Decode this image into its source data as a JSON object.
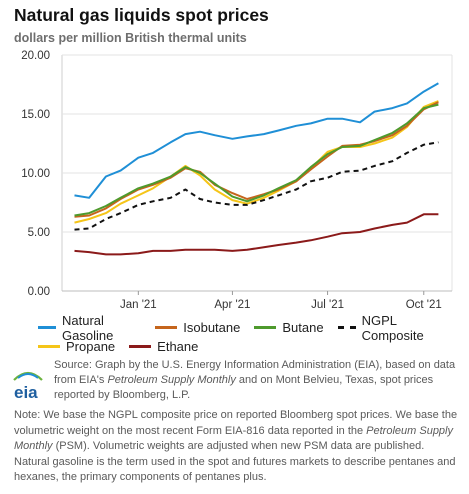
{
  "title": "Natural gas liquids spot prices",
  "subtitle": "dollars per million British thermal units",
  "logo_text": "eia",
  "source": {
    "prefix": "Source: Graph by the U.S. Energy Information Administration (EIA), based on data from EIA's ",
    "italic1": "Petroleum Supply Monthly",
    "suffix": " and on Mont Belvieu, Texas, spot prices reported by Bloomberg, L.P."
  },
  "note": {
    "prefix": "Note: We base the NGPL composite price on reported Bloomberg spot prices. We base the volumetric weight on the most recent Form EIA-816 data reported in the ",
    "italic1": "Petroleum Supply Monthly",
    "suffix": " (PSM). Volumetric weights are adjusted when new PSM data are published. Natural gasoline is the term used in the spot and futures markets to describe pentanes and hexanes, the primary components of pentanes plus."
  },
  "chart_data": {
    "type": "line",
    "title": "Natural gas liquids spot prices",
    "subtitle": "dollars per million British thermal units",
    "x": [
      "2020-11-01",
      "2020-11-15",
      "2020-12-01",
      "2020-12-15",
      "2021-01-01",
      "2021-01-15",
      "2021-02-01",
      "2021-02-15",
      "2021-03-01",
      "2021-03-15",
      "2021-04-01",
      "2021-04-15",
      "2021-05-01",
      "2021-05-15",
      "2021-06-01",
      "2021-06-15",
      "2021-07-01",
      "2021-07-15",
      "2021-08-01",
      "2021-08-15",
      "2021-09-01",
      "2021-09-15",
      "2021-10-01",
      "2021-10-15"
    ],
    "x_ticks": [
      "Jan '21",
      "Apr '21",
      "Jul '21",
      "Oct '21"
    ],
    "y_ticks": [
      "0.00",
      "5.00",
      "10.00",
      "15.00",
      "20.00"
    ],
    "ylim": [
      0,
      20
    ],
    "grid": true,
    "legend_position": "bottom",
    "series": [
      {
        "name": "Natural Gasoline",
        "color": "#1f8fd6",
        "dashed": false,
        "values": [
          8.1,
          7.9,
          9.7,
          10.2,
          11.3,
          11.7,
          12.6,
          13.3,
          13.5,
          13.2,
          12.9,
          13.1,
          13.3,
          13.6,
          14.0,
          14.2,
          14.6,
          14.6,
          14.3,
          15.2,
          15.5,
          15.9,
          16.9,
          17.6
        ]
      },
      {
        "name": "Isobutane",
        "color": "#c5651c",
        "dashed": false,
        "values": [
          6.3,
          6.4,
          7.0,
          7.8,
          8.6,
          9.0,
          9.6,
          10.4,
          10.1,
          9.0,
          8.3,
          7.8,
          8.2,
          8.6,
          9.3,
          10.3,
          11.4,
          12.3,
          12.4,
          12.7,
          13.2,
          14.0,
          15.4,
          16.0
        ]
      },
      {
        "name": "Butane",
        "color": "#4e9a2d",
        "dashed": false,
        "values": [
          6.4,
          6.6,
          7.2,
          7.9,
          8.7,
          9.1,
          9.7,
          10.5,
          10.0,
          9.1,
          8.0,
          7.6,
          8.1,
          8.7,
          9.4,
          10.5,
          11.6,
          12.2,
          12.3,
          12.8,
          13.4,
          14.2,
          15.5,
          15.8
        ]
      },
      {
        "name": "NGPL Composite",
        "color": "#111111",
        "dashed": true,
        "values": [
          5.2,
          5.3,
          6.1,
          6.6,
          7.3,
          7.6,
          7.9,
          8.6,
          7.8,
          7.5,
          7.3,
          7.3,
          7.7,
          8.1,
          8.6,
          9.3,
          9.6,
          10.1,
          10.2,
          10.6,
          11.0,
          11.7,
          12.4,
          12.6
        ]
      },
      {
        "name": "Propane",
        "color": "#f5c518",
        "dashed": false,
        "values": [
          5.8,
          6.1,
          6.6,
          7.4,
          8.1,
          8.7,
          9.7,
          10.6,
          9.8,
          8.6,
          7.7,
          7.4,
          7.9,
          8.5,
          9.3,
          10.4,
          11.8,
          12.2,
          12.2,
          12.5,
          13.0,
          13.9,
          15.6,
          16.1
        ]
      },
      {
        "name": "Ethane",
        "color": "#8b1a1a",
        "dashed": false,
        "values": [
          3.4,
          3.3,
          3.1,
          3.1,
          3.2,
          3.4,
          3.4,
          3.5,
          3.5,
          3.5,
          3.4,
          3.5,
          3.7,
          3.9,
          4.1,
          4.3,
          4.6,
          4.9,
          5.0,
          5.3,
          5.6,
          5.8,
          6.5,
          6.5
        ]
      }
    ]
  }
}
